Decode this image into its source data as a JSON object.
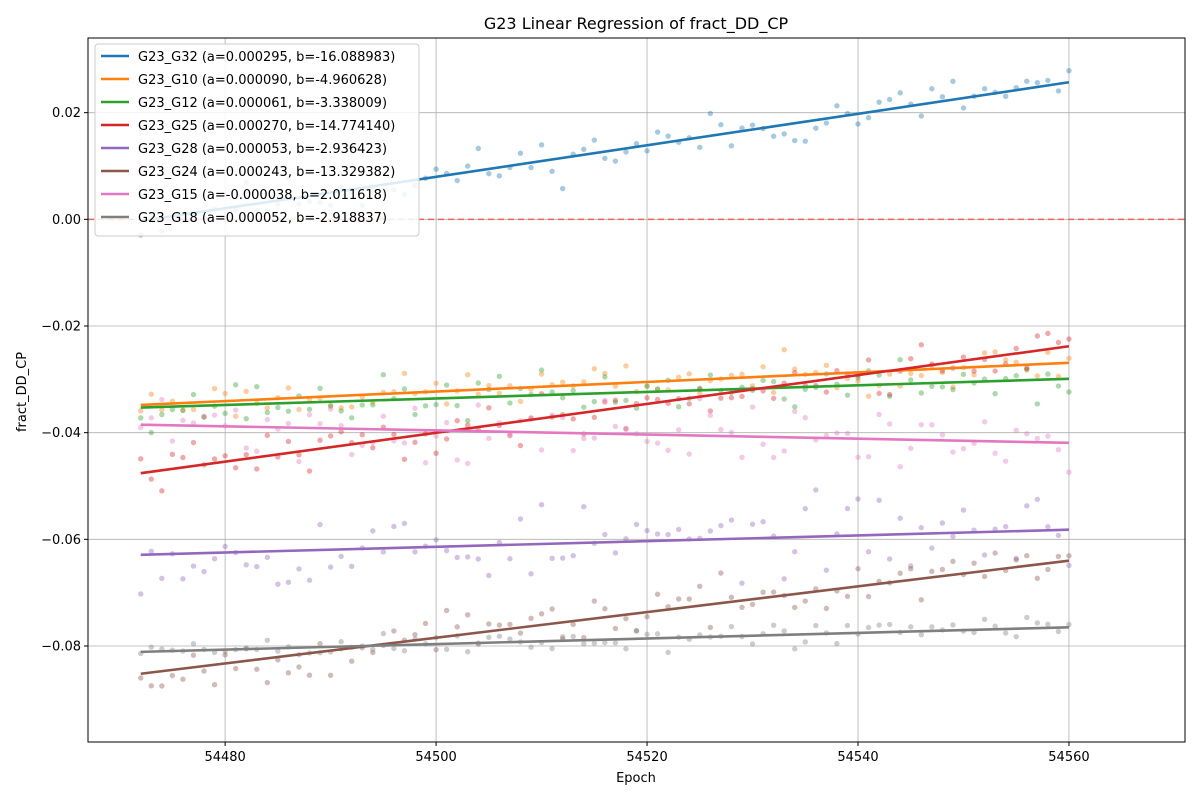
{
  "chart_data": {
    "type": "scatter",
    "title": "G23 Linear Regression of fract_DD_CP",
    "xlabel": "Epoch",
    "ylabel": "fract_DD_CP",
    "xlim": [
      54467,
      54571
    ],
    "ylim": [
      -0.098,
      0.034
    ],
    "x_ticks": [
      54480,
      54500,
      54520,
      54540,
      54560
    ],
    "x_tick_labels": [
      "54480",
      "54500",
      "54520",
      "54540",
      "54560"
    ],
    "y_ticks": [
      -0.08,
      -0.06,
      -0.04,
      -0.02,
      0.0,
      0.02
    ],
    "y_tick_labels": [
      "−0.08",
      "−0.06",
      "−0.04",
      "−0.02",
      "0.00",
      "0.02"
    ],
    "grid": true,
    "legend_position": "upper-left",
    "reference_line": {
      "y": 0.0,
      "color": "#e8665e",
      "style": "dashed"
    },
    "x_range": [
      54472,
      54560
    ],
    "series": [
      {
        "name": "G23_G32 (a=0.000295, b=-16.088983)",
        "color": "#1f77b4",
        "a": 0.000295,
        "b": -16.088983,
        "line_start": -0.0003,
        "line_end": 0.0257,
        "noise": 0.003,
        "seed": 11
      },
      {
        "name": "G23_G10 (a=0.000090, b=-4.960628)",
        "color": "#ff7f0e",
        "a": 9e-05,
        "b": -4.960628,
        "line_start": -0.0348,
        "line_end": -0.0269,
        "noise": 0.0025,
        "seed": 23
      },
      {
        "name": "G23_G12 (a=0.000061, b=-3.338009)",
        "color": "#2ca02c",
        "a": 6.1e-05,
        "b": -3.338009,
        "line_start": -0.0353,
        "line_end": -0.0299,
        "noise": 0.003,
        "seed": 37
      },
      {
        "name": "G23_G25 (a=0.000270, b=-14.774140)",
        "color": "#d62728",
        "a": 0.00027,
        "b": -14.77414,
        "line_start": -0.0476,
        "line_end": -0.0238,
        "noise": 0.003,
        "seed": 41
      },
      {
        "name": "G23_G28 (a=0.000053, b=-2.936423)",
        "color": "#9467bd",
        "a": 5.3e-05,
        "b": -2.936423,
        "line_start": -0.0629,
        "line_end": -0.0582,
        "noise": 0.005,
        "seed": 53
      },
      {
        "name": "G23_G24 (a=0.000243, b=-13.329382)",
        "color": "#8c564b",
        "a": 0.000243,
        "b": -13.329382,
        "line_start": -0.0852,
        "line_end": -0.064,
        "noise": 0.003,
        "seed": 67
      },
      {
        "name": "G23_G15 (a=-0.000038, b=2.011618)",
        "color": "#e377c2",
        "a": -3.8e-05,
        "b": 2.011618,
        "line_start": -0.0385,
        "line_end": -0.0419,
        "noise": 0.0045,
        "seed": 71
      },
      {
        "name": "G23_G18 (a=0.000052, b=-2.918837)",
        "color": "#7f7f7f",
        "a": 5.2e-05,
        "b": -2.918837,
        "line_start": -0.0811,
        "line_end": -0.0765,
        "noise": 0.0018,
        "seed": 89
      }
    ]
  }
}
